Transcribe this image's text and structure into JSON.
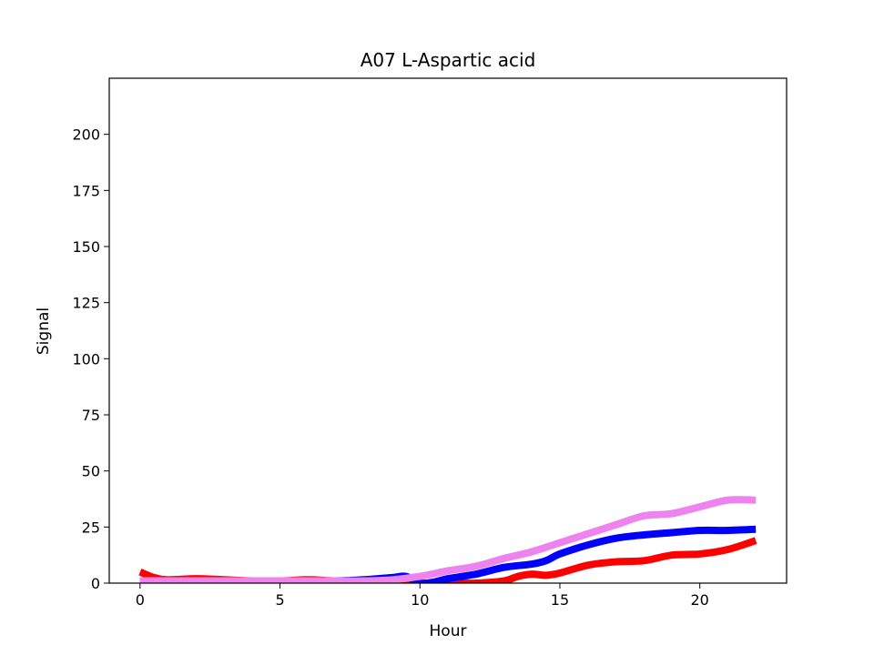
{
  "chart_data": {
    "type": "line",
    "title": "A07 L-Aspartic acid",
    "xlabel": "Hour",
    "ylabel": "Signal",
    "xlim": [
      -1.1,
      23.1
    ],
    "ylim": [
      0,
      225
    ],
    "xticks": [
      0,
      5,
      10,
      15,
      20
    ],
    "yticks": [
      0,
      25,
      50,
      75,
      100,
      125,
      150,
      175,
      200
    ],
    "grid": false,
    "legend": "none",
    "series": [
      {
        "color": "#ff0000",
        "x": [
          0,
          0.5,
          1,
          2,
          3,
          4,
          5,
          6,
          7,
          8,
          9,
          10,
          10.5,
          11,
          12,
          13,
          13.5,
          14,
          14.5,
          15,
          16,
          17,
          18,
          19,
          20,
          21,
          22
        ],
        "y": [
          5,
          2.5,
          1.5,
          2,
          1.5,
          1,
          1,
          1.5,
          1,
          1,
          0.5,
          0,
          0,
          0,
          0,
          1,
          3,
          4,
          3.5,
          4.5,
          8,
          9.5,
          10,
          12.5,
          13,
          15,
          19
        ]
      },
      {
        "color": "#0000ff",
        "x": [
          0,
          1,
          2,
          3,
          4,
          5,
          6,
          7,
          8,
          9,
          9.5,
          10,
          10.5,
          11,
          12,
          13,
          14,
          14.5,
          15,
          16,
          17,
          18,
          19,
          20,
          21,
          22
        ],
        "y": [
          1,
          1,
          1,
          1,
          1,
          1,
          1,
          1,
          1.5,
          2.5,
          3,
          0,
          0.5,
          2,
          4,
          7,
          8.5,
          10,
          13,
          17,
          20,
          21.5,
          22.5,
          23.5,
          23.5,
          24
        ]
      },
      {
        "color": "#ee82ee",
        "x": [
          0,
          1,
          2,
          3,
          4,
          5,
          6,
          7,
          8,
          9,
          10,
          11,
          12,
          13,
          14,
          15,
          16,
          17,
          18,
          19,
          20,
          21,
          22
        ],
        "y": [
          1,
          1,
          1,
          1,
          1,
          1,
          1,
          1,
          1,
          1.5,
          3,
          5.5,
          7.5,
          11,
          14,
          18,
          22,
          26,
          30,
          31,
          34,
          37,
          37
        ]
      }
    ]
  }
}
